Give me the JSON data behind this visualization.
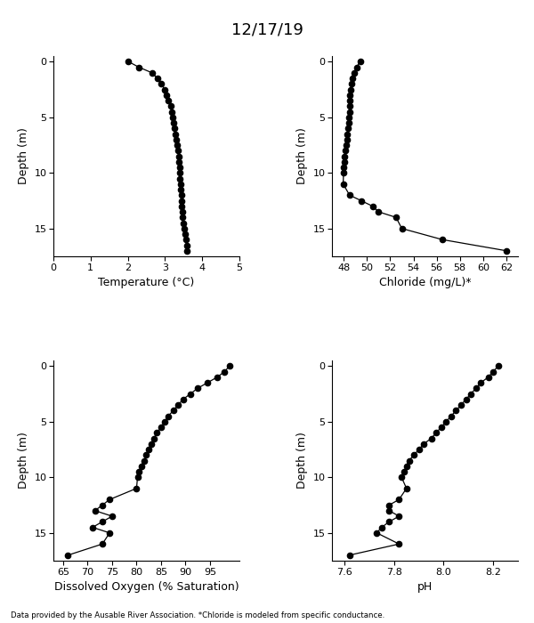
{
  "title": "12/17/19",
  "footnote": "Data provided by the Ausable River Association. *Chloride is modeled from specific conductance.",
  "temp_depths": [
    0,
    0.5,
    1,
    1.5,
    2,
    2.5,
    3,
    3.5,
    4,
    4.5,
    5,
    5.5,
    6,
    6.5,
    7,
    7.5,
    8,
    8.5,
    9,
    9.5,
    10,
    10.5,
    11,
    11.5,
    12,
    12.5,
    13,
    13.5,
    14,
    14.5,
    15,
    15.5,
    16,
    16.5,
    17
  ],
  "temp_vals": [
    2.02,
    2.3,
    2.65,
    2.8,
    2.9,
    3.0,
    3.05,
    3.1,
    3.15,
    3.18,
    3.2,
    3.23,
    3.25,
    3.28,
    3.3,
    3.32,
    3.35,
    3.37,
    3.38,
    3.39,
    3.4,
    3.41,
    3.42,
    3.43,
    3.44,
    3.45,
    3.46,
    3.47,
    3.48,
    3.5,
    3.52,
    3.54,
    3.56,
    3.58,
    3.6
  ],
  "chl_depths": [
    0,
    0.5,
    1,
    1.5,
    2,
    2.5,
    3,
    3.5,
    4,
    4.5,
    5,
    5.5,
    6,
    6.5,
    7,
    7.5,
    8,
    8.5,
    9,
    9.5,
    10,
    11,
    12,
    12.5,
    13,
    13.5,
    14,
    15,
    16,
    17
  ],
  "chl_vals": [
    49.4,
    49.1,
    48.9,
    48.75,
    48.65,
    48.6,
    48.55,
    48.52,
    48.5,
    48.48,
    48.45,
    48.42,
    48.38,
    48.32,
    48.28,
    48.22,
    48.15,
    48.08,
    48.02,
    48.0,
    47.98,
    47.95,
    48.5,
    49.5,
    50.5,
    51.0,
    52.5,
    53.0,
    56.5,
    62.0
  ],
  "do_depths": [
    0,
    0.5,
    1,
    1.5,
    2,
    2.5,
    3,
    3.5,
    4,
    4.5,
    5,
    5.5,
    6,
    6.5,
    7,
    7.5,
    8,
    8.5,
    9,
    9.5,
    10,
    11,
    12,
    12.5,
    13,
    13.5,
    14,
    14.5,
    15,
    16,
    17
  ],
  "do_vals": [
    99.0,
    98.0,
    96.5,
    94.5,
    92.5,
    91.0,
    89.5,
    88.5,
    87.5,
    86.5,
    85.8,
    85.0,
    84.2,
    83.5,
    83.0,
    82.5,
    82.0,
    81.5,
    81.0,
    80.5,
    80.2,
    80.0,
    74.5,
    73.0,
    71.5,
    75.0,
    73.0,
    71.0,
    74.5,
    73.0,
    66.0
  ],
  "ph_depths": [
    0,
    0.5,
    1,
    1.5,
    2,
    2.5,
    3,
    3.5,
    4,
    4.5,
    5,
    5.5,
    6,
    6.5,
    7,
    7.5,
    8,
    8.5,
    9,
    9.5,
    10,
    11,
    12,
    12.5,
    13,
    13.5,
    14,
    14.5,
    15,
    16,
    17
  ],
  "ph_vals": [
    8.22,
    8.2,
    8.18,
    8.15,
    8.13,
    8.11,
    8.09,
    8.07,
    8.05,
    8.03,
    8.01,
    7.99,
    7.97,
    7.95,
    7.92,
    7.9,
    7.88,
    7.86,
    7.85,
    7.84,
    7.83,
    7.85,
    7.82,
    7.78,
    7.78,
    7.82,
    7.78,
    7.75,
    7.73,
    7.82,
    7.62
  ],
  "temp_xlim": [
    0,
    5
  ],
  "temp_xticks": [
    0,
    1,
    2,
    3,
    4,
    5
  ],
  "chl_xlim": [
    47,
    63
  ],
  "chl_xticks": [
    48,
    50,
    52,
    54,
    56,
    58,
    60,
    62
  ],
  "do_xlim": [
    63,
    101
  ],
  "do_xticks": [
    65,
    70,
    75,
    80,
    85,
    90,
    95
  ],
  "ph_xlim": [
    7.55,
    8.3
  ],
  "ph_xticks": [
    7.6,
    7.8,
    8.0,
    8.2
  ],
  "depth_lim": [
    17.5,
    -0.5
  ],
  "depth_ticks": [
    0,
    5,
    10,
    15
  ],
  "xlabel_temp": "Temperature (°C)",
  "xlabel_chl": "Chloride (mg/L)*",
  "xlabel_do": "Dissolved Oxygen (% Saturation)",
  "xlabel_ph": "pH",
  "ylabel": "Depth (m)"
}
